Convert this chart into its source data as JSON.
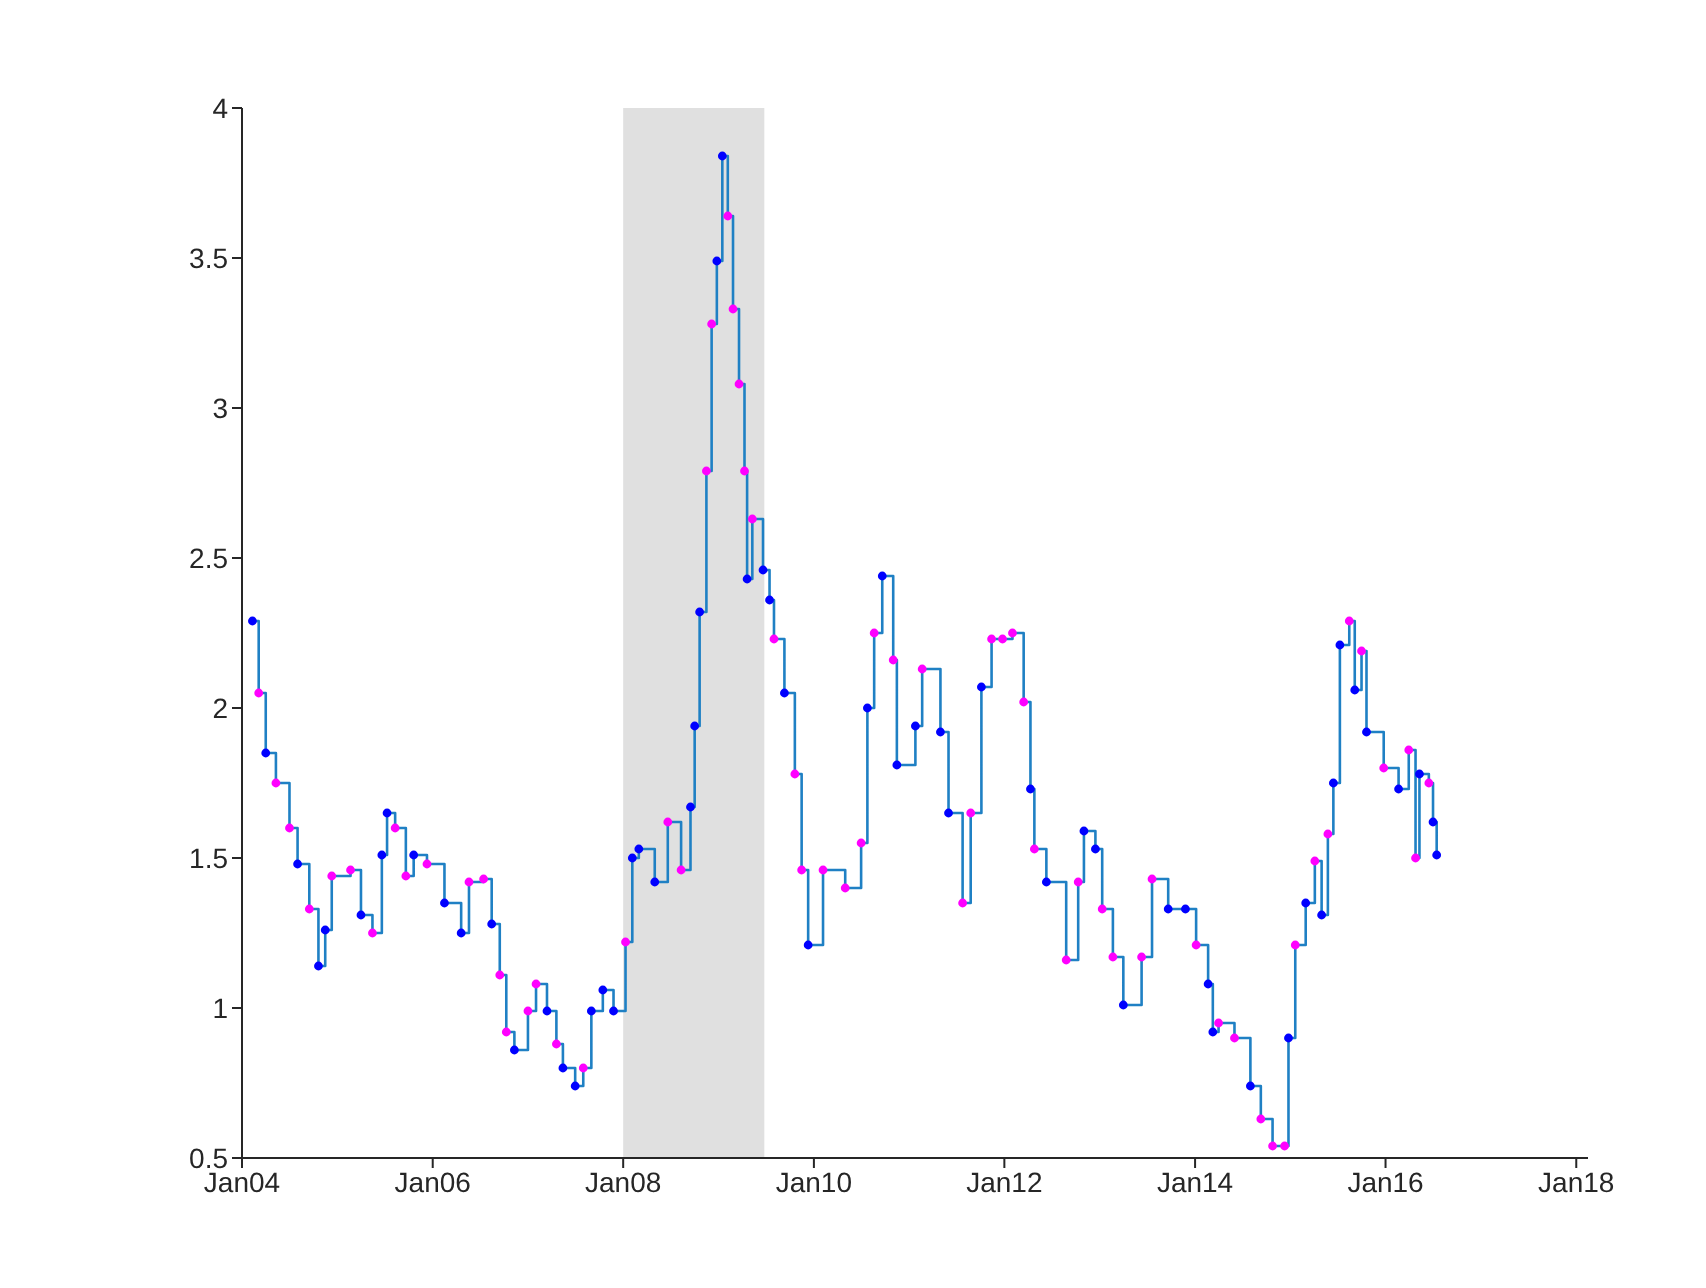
{
  "chart_data": {
    "type": "step",
    "xlim": [
      "2004-01-01",
      "2018-02-15"
    ],
    "ylim": [
      0.5,
      4
    ],
    "xticks": [
      {
        "value": "2004-01-01",
        "label": "Jan04"
      },
      {
        "value": "2006-01-01",
        "label": "Jan06"
      },
      {
        "value": "2008-01-01",
        "label": "Jan08"
      },
      {
        "value": "2010-01-01",
        "label": "Jan10"
      },
      {
        "value": "2012-01-01",
        "label": "Jan12"
      },
      {
        "value": "2014-01-01",
        "label": "Jan14"
      },
      {
        "value": "2016-01-01",
        "label": "Jan16"
      },
      {
        "value": "2018-01-01",
        "label": "Jan18"
      }
    ],
    "yticks": [
      0.5,
      1,
      1.5,
      2,
      2.5,
      3,
      3.5,
      4
    ],
    "bands": [
      {
        "axis": "x",
        "from": "2008-01-01",
        "to": "2009-06-25",
        "color": "#e0e0e0"
      }
    ],
    "series": [
      {
        "color": "#1f80c4",
        "marker": "circle",
        "x": [
          "2004-02-10",
          "2004-03-05",
          "2004-04-01",
          "2004-05-10",
          "2004-07-01",
          "2004-08-01",
          "2004-09-15",
          "2004-10-20",
          "2004-11-15",
          "2004-12-10",
          "2005-02-20",
          "2005-04-01",
          "2005-05-15",
          "2005-06-20",
          "2005-07-10",
          "2005-08-10",
          "2005-09-20",
          "2005-10-20",
          "2005-12-10",
          "2006-02-15",
          "2006-04-20",
          "2006-05-20",
          "2006-07-15",
          "2006-08-15",
          "2006-09-15",
          "2006-10-10",
          "2006-11-10",
          "2007-01-01",
          "2007-02-01",
          "2007-03-15",
          "2007-04-20",
          "2007-05-15",
          "2007-07-01",
          "2007-08-01",
          "2007-09-01",
          "2007-10-15",
          "2007-11-25",
          "2008-01-10",
          "2008-02-05",
          "2008-03-01",
          "2008-05-01",
          "2008-06-20",
          "2008-08-10",
          "2008-09-15",
          "2008-10-01",
          "2008-10-20",
          "2008-11-15",
          "2008-12-05",
          "2008-12-25",
          "2009-01-15",
          "2009-02-05",
          "2009-02-25",
          "2009-03-20",
          "2009-04-10",
          "2009-04-20",
          "2009-05-10",
          "2009-06-20",
          "2009-07-15",
          "2009-08-01",
          "2009-09-10",
          "2009-10-20",
          "2009-11-15",
          "2009-12-10",
          "2010-02-05",
          "2010-05-01",
          "2010-07-01",
          "2010-07-25",
          "2010-08-20",
          "2010-09-20",
          "2010-11-01",
          "2010-11-15",
          "2011-01-25",
          "2011-02-20",
          "2011-05-01",
          "2011-06-01",
          "2011-07-25",
          "2011-08-25",
          "2011-10-05",
          "2011-11-13",
          "2011-12-25",
          "2012-02-01",
          "2012-03-15",
          "2012-04-10",
          "2012-04-25",
          "2012-06-10",
          "2012-08-25",
          "2012-10-10",
          "2012-11-01",
          "2012-12-15",
          "2013-01-10",
          "2013-02-20",
          "2013-04-01",
          "2013-06-10",
          "2013-07-20",
          "2013-09-20",
          "2013-11-25",
          "2014-01-05",
          "2014-02-20",
          "2014-03-10",
          "2014-04-01",
          "2014-06-01",
          "2014-08-01",
          "2014-09-10",
          "2014-10-25",
          "2014-12-10",
          "2014-12-25",
          "2015-01-20",
          "2015-03-01",
          "2015-04-05",
          "2015-05-01",
          "2015-05-25",
          "2015-06-15",
          "2015-07-10",
          "2015-08-15",
          "2015-09-05",
          "2015-10-01",
          "2015-10-20",
          "2015-12-25",
          "2016-02-20",
          "2016-03-30",
          "2016-04-25",
          "2016-05-10",
          "2016-06-15",
          "2016-07-01",
          "2016-07-15"
        ],
        "values": [
          2.29,
          2.05,
          1.85,
          1.75,
          1.6,
          1.48,
          1.33,
          1.14,
          1.26,
          1.44,
          1.46,
          1.31,
          1.25,
          1.51,
          1.65,
          1.6,
          1.44,
          1.51,
          1.48,
          1.35,
          1.25,
          1.42,
          1.43,
          1.28,
          1.11,
          0.92,
          0.86,
          0.99,
          1.08,
          0.99,
          0.88,
          0.8,
          0.74,
          0.8,
          0.99,
          1.06,
          0.99,
          1.22,
          1.5,
          1.53,
          1.42,
          1.62,
          1.46,
          1.67,
          1.94,
          2.32,
          2.79,
          3.28,
          3.49,
          3.84,
          3.64,
          3.33,
          3.08,
          2.79,
          2.43,
          2.63,
          2.46,
          2.36,
          2.23,
          2.05,
          1.78,
          1.46,
          1.21,
          1.46,
          1.4,
          1.55,
          2.0,
          2.25,
          2.44,
          2.16,
          1.81,
          1.94,
          2.13,
          1.92,
          1.65,
          1.35,
          1.65,
          2.07,
          2.23,
          2.23,
          2.25,
          2.02,
          1.73,
          1.53,
          1.42,
          1.16,
          1.42,
          1.59,
          1.53,
          1.33,
          1.17,
          1.01,
          1.17,
          1.43,
          1.33,
          1.33,
          1.21,
          1.08,
          0.92,
          0.95,
          0.9,
          0.74,
          0.63,
          0.54,
          0.54,
          0.9,
          1.21,
          1.35,
          1.49,
          1.31,
          1.58,
          1.75,
          2.21,
          2.29,
          2.06,
          2.19,
          1.92,
          1.8,
          1.73,
          1.86,
          1.5,
          1.78,
          1.75,
          1.62,
          1.51
        ],
        "colors": [
          "#0000ff",
          "#ff00ff",
          "#0000ff",
          "#ff00ff",
          "#ff00ff",
          "#0000ff",
          "#ff00ff",
          "#0000ff",
          "#0000ff",
          "#ff00ff",
          "#ff00ff",
          "#0000ff",
          "#ff00ff",
          "#0000ff",
          "#0000ff",
          "#ff00ff",
          "#ff00ff",
          "#0000ff",
          "#ff00ff",
          "#0000ff",
          "#0000ff",
          "#ff00ff",
          "#ff00ff",
          "#0000ff",
          "#ff00ff",
          "#ff00ff",
          "#0000ff",
          "#ff00ff",
          "#ff00ff",
          "#0000ff",
          "#ff00ff",
          "#0000ff",
          "#0000ff",
          "#ff00ff",
          "#0000ff",
          "#0000ff",
          "#0000ff",
          "#ff00ff",
          "#0000ff",
          "#0000ff",
          "#0000ff",
          "#ff00ff",
          "#ff00ff",
          "#0000ff",
          "#0000ff",
          "#0000ff",
          "#ff00ff",
          "#ff00ff",
          "#0000ff",
          "#0000ff",
          "#ff00ff",
          "#ff00ff",
          "#ff00ff",
          "#ff00ff",
          "#0000ff",
          "#ff00ff",
          "#0000ff",
          "#0000ff",
          "#ff00ff",
          "#0000ff",
          "#ff00ff",
          "#ff00ff",
          "#0000ff",
          "#ff00ff",
          "#ff00ff",
          "#ff00ff",
          "#0000ff",
          "#ff00ff",
          "#0000ff",
          "#ff00ff",
          "#0000ff",
          "#0000ff",
          "#ff00ff",
          "#0000ff",
          "#0000ff",
          "#ff00ff",
          "#ff00ff",
          "#0000ff",
          "#ff00ff",
          "#ff00ff",
          "#ff00ff",
          "#ff00ff",
          "#0000ff",
          "#ff00ff",
          "#0000ff",
          "#ff00ff",
          "#ff00ff",
          "#0000ff",
          "#0000ff",
          "#ff00ff",
          "#ff00ff",
          "#0000ff",
          "#ff00ff",
          "#ff00ff",
          "#0000ff",
          "#0000ff",
          "#ff00ff",
          "#0000ff",
          "#0000ff",
          "#ff00ff",
          "#ff00ff",
          "#0000ff",
          "#ff00ff",
          "#ff00ff",
          "#ff00ff",
          "#0000ff",
          "#ff00ff",
          "#0000ff",
          "#ff00ff",
          "#0000ff",
          "#ff00ff",
          "#0000ff",
          "#0000ff",
          "#ff00ff",
          "#0000ff",
          "#ff00ff",
          "#0000ff",
          "#ff00ff",
          "#0000ff",
          "#ff00ff",
          "#ff00ff",
          "#0000ff",
          "#ff00ff",
          "#0000ff",
          "#0000ff"
        ]
      }
    ]
  }
}
